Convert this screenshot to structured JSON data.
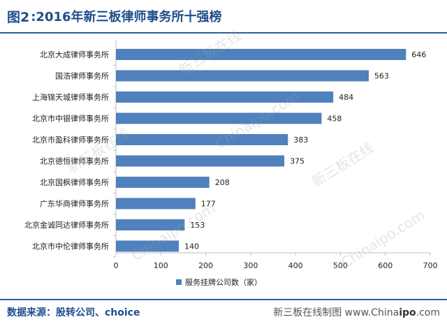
{
  "header": {
    "prefix": "图2",
    "title": ":2016年新三板律师事务所十强榜"
  },
  "footer": {
    "source": "数据来源：股转公司、choice",
    "credit_prefix": "新三板在线制图 www.China",
    "credit_bold": "ipo",
    "credit_suffix": ".com"
  },
  "watermarks": [
    "新三板在线",
    "Chinaipo.com"
  ],
  "colors": {
    "bar": "#4f81bd",
    "title": "#1f4e8c",
    "rule": "#2f5f9e"
  },
  "chart_data": {
    "type": "bar",
    "orientation": "horizontal",
    "categories": [
      "北京大成律师事务所",
      "国浩律师事务所",
      "上海锦天城律师事务所",
      "北京市中银律师事务所",
      "北京市盈科律师事务所",
      "北京德恒律师事务所",
      "北京国枫律师事务所",
      "广东华商律师事务所",
      "北京金诚同达律师事务所",
      "北京市中伦律师事务所"
    ],
    "values": [
      646,
      563,
      484,
      458,
      383,
      375,
      208,
      177,
      153,
      140
    ],
    "xlim": [
      0,
      700
    ],
    "xticks": [
      0,
      100,
      200,
      300,
      400,
      500,
      600,
      700
    ],
    "legend": {
      "label": "服务挂牌公司数（家）",
      "position": "bottom"
    },
    "grid": false
  }
}
